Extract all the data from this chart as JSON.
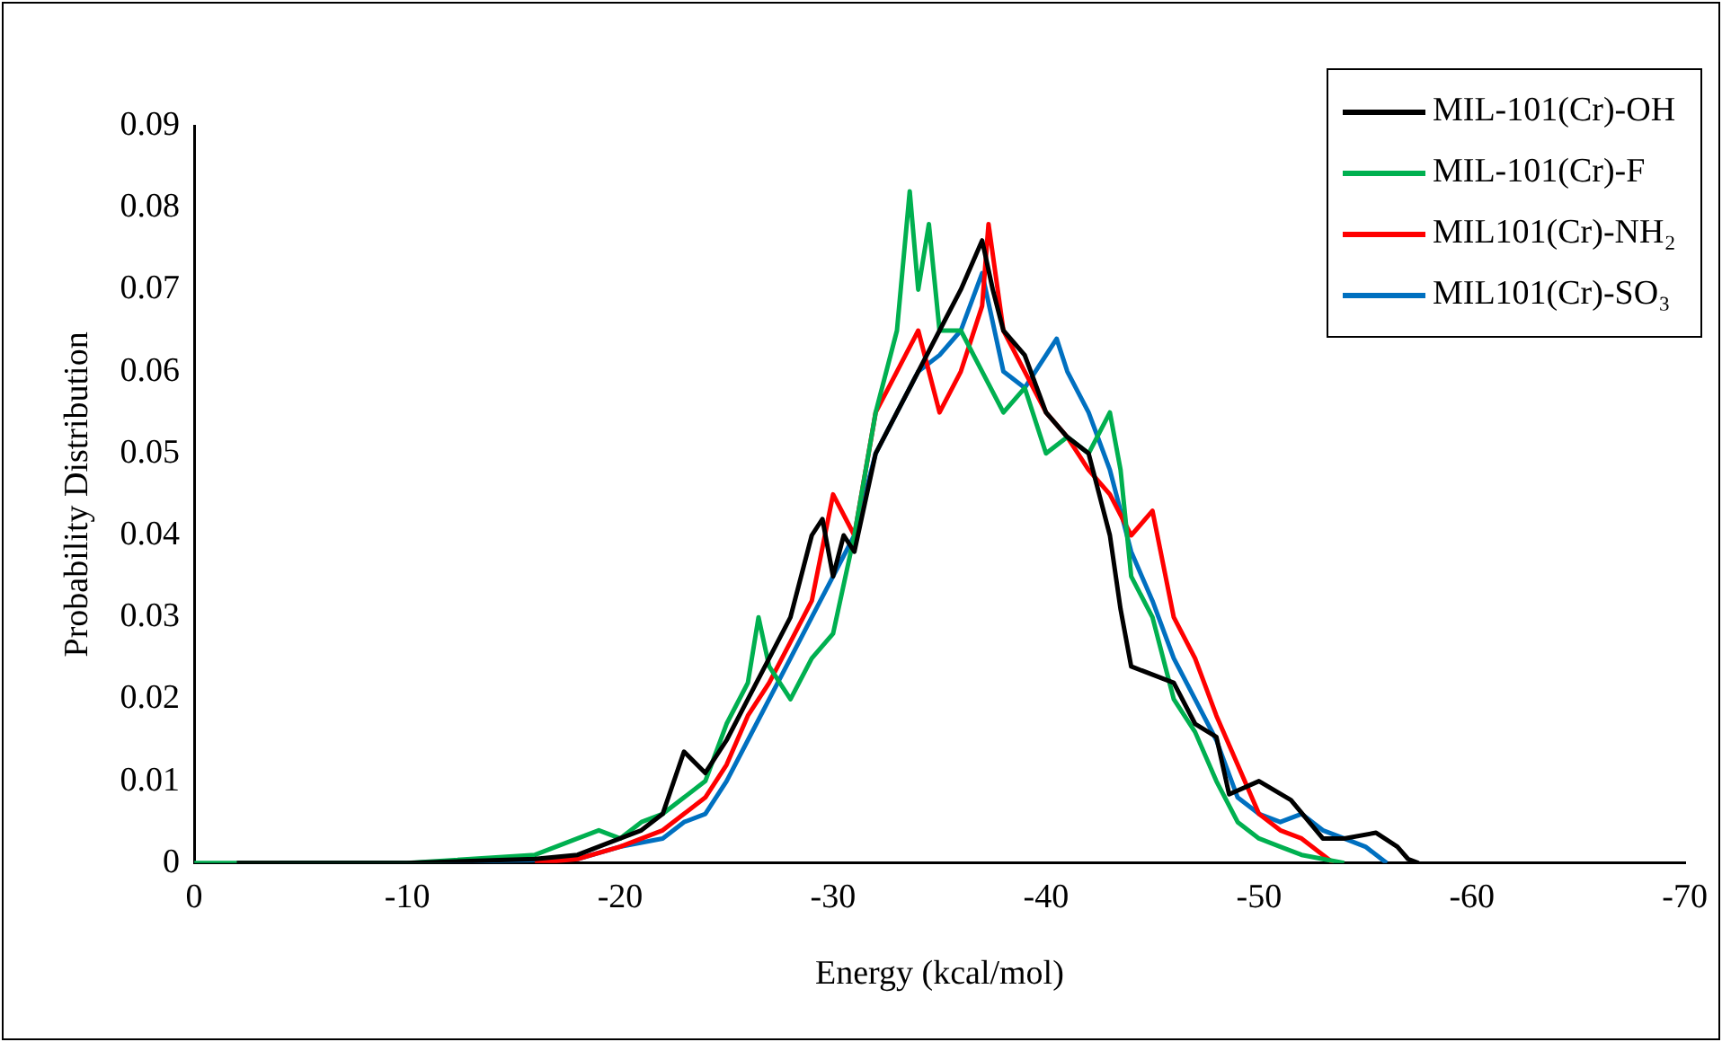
{
  "chart_data": {
    "type": "line",
    "xlabel": "Energy (kcal/mol)",
    "ylabel": "Probability Distribution",
    "xlim": [
      0,
      -70
    ],
    "xticks": [
      0,
      -10,
      -20,
      -30,
      -40,
      -50,
      -60,
      -70
    ],
    "ylim": [
      0,
      0.09
    ],
    "yticks": [
      0,
      0.01,
      0.02,
      0.03,
      0.04,
      0.05,
      0.06,
      0.07,
      0.08,
      0.09
    ],
    "grid": false,
    "legend": "top right",
    "marker": "none",
    "line_style": "solid",
    "series": [
      {
        "name": "MIL-101(Cr)-OH",
        "color": "#000000",
        "x": [
          -2,
          -10,
          -16,
          -18,
          -20,
          -21,
          -22,
          -23,
          -24,
          -25,
          -26,
          -27,
          -28,
          -29,
          -29.5,
          -30,
          -30.5,
          -31,
          -32,
          -33,
          -34,
          -35,
          -36,
          -37,
          -37.5,
          -38,
          -39,
          -40,
          -41,
          -42,
          -43,
          -43.5,
          -44,
          -46,
          -47,
          -48,
          -48.6,
          -50,
          -51.5,
          -53,
          -54,
          -55.5,
          -56.5,
          -57,
          -57.5
        ],
        "values": [
          0,
          0,
          0.0005,
          0.001,
          0.003,
          0.004,
          0.006,
          0.0136,
          0.011,
          0.015,
          0.02,
          0.025,
          0.03,
          0.04,
          0.042,
          0.035,
          0.04,
          0.038,
          0.05,
          0.055,
          0.06,
          0.065,
          0.07,
          0.076,
          0.07,
          0.065,
          0.062,
          0.055,
          0.052,
          0.05,
          0.04,
          0.031,
          0.024,
          0.022,
          0.017,
          0.0154,
          0.0084,
          0.01,
          0.0077,
          0.003,
          0.003,
          0.0037,
          0.002,
          0.0005,
          0
        ]
      },
      {
        "name": "MIL-101(Cr)-F",
        "color": "#00b050",
        "x": [
          0,
          -10,
          -16,
          -18,
          -19,
          -20,
          -21,
          -22,
          -23,
          -24,
          -25,
          -26,
          -26.5,
          -27,
          -28,
          -29,
          -30,
          -31,
          -32,
          -33,
          -33.6,
          -34,
          -34.5,
          -35,
          -36,
          -37,
          -38,
          -39,
          -40,
          -41,
          -42,
          -43,
          -43.5,
          -44,
          -45,
          -46,
          -47,
          -48,
          -49,
          -50,
          -51,
          -52,
          -53,
          -54
        ],
        "values": [
          0,
          0,
          0.001,
          0.003,
          0.004,
          0.003,
          0.005,
          0.006,
          0.008,
          0.01,
          0.017,
          0.022,
          0.03,
          0.024,
          0.02,
          0.025,
          0.028,
          0.04,
          0.055,
          0.065,
          0.082,
          0.07,
          0.078,
          0.065,
          0.065,
          0.06,
          0.055,
          0.058,
          0.05,
          0.052,
          0.05,
          0.055,
          0.048,
          0.035,
          0.03,
          0.02,
          0.016,
          0.01,
          0.005,
          0.003,
          0.002,
          0.001,
          0.0005,
          0
        ]
      },
      {
        "name": "MIL101(Cr)-NH₂",
        "color": "#ff0000",
        "x": [
          -16,
          -18,
          -20,
          -22,
          -23,
          -24,
          -25,
          -26,
          -27,
          -28,
          -29,
          -30,
          -31,
          -32,
          -33,
          -34,
          -35,
          -36,
          -37,
          -37.3,
          -38,
          -39,
          -40,
          -41,
          -42,
          -43,
          -44,
          -45,
          -46,
          -47,
          -48,
          -49,
          -50,
          -51,
          -52,
          -53,
          -53.5
        ],
        "values": [
          0,
          0.0005,
          0.002,
          0.004,
          0.006,
          0.008,
          0.012,
          0.018,
          0.022,
          0.027,
          0.032,
          0.045,
          0.04,
          0.055,
          0.06,
          0.065,
          0.055,
          0.06,
          0.068,
          0.078,
          0.065,
          0.06,
          0.055,
          0.052,
          0.048,
          0.045,
          0.04,
          0.043,
          0.03,
          0.025,
          0.018,
          0.012,
          0.006,
          0.004,
          0.003,
          0.001,
          0
        ]
      },
      {
        "name": "MIL101(Cr)-SO₃",
        "color": "#0070c0",
        "x": [
          -4,
          -10,
          -18,
          -20,
          -22,
          -23,
          -24,
          -25,
          -26,
          -27,
          -28,
          -29,
          -30,
          -31,
          -32,
          -33,
          -34,
          -35,
          -36,
          -37,
          -38,
          -39,
          -40,
          -40.5,
          -41,
          -42,
          -43,
          -44,
          -45,
          -46,
          -47,
          -48,
          -49,
          -50,
          -51,
          -52,
          -53,
          -54,
          -55,
          -56
        ],
        "values": [
          0,
          0,
          0.0005,
          0.002,
          0.003,
          0.005,
          0.006,
          0.01,
          0.015,
          0.02,
          0.025,
          0.03,
          0.035,
          0.04,
          0.05,
          0.055,
          0.06,
          0.062,
          0.065,
          0.072,
          0.06,
          0.058,
          0.062,
          0.064,
          0.06,
          0.055,
          0.048,
          0.038,
          0.032,
          0.025,
          0.02,
          0.015,
          0.008,
          0.006,
          0.005,
          0.006,
          0.004,
          0.003,
          0.002,
          0
        ]
      }
    ]
  }
}
